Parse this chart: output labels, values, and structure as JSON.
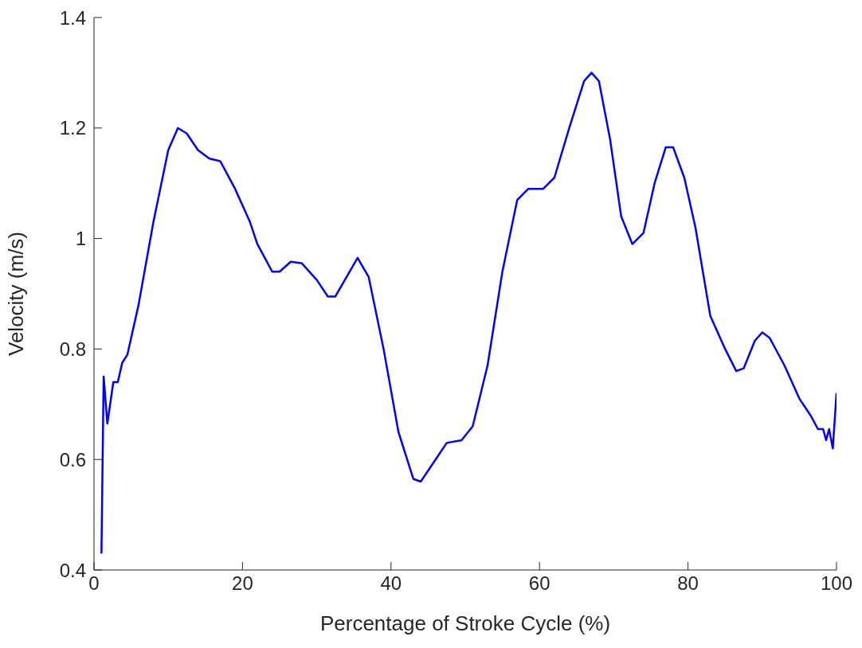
{
  "chart_data": {
    "type": "line",
    "xlabel": "Percentage of Stroke Cycle (%)",
    "ylabel": "Velocity (m/s)",
    "xlim": [
      0,
      100
    ],
    "xticks": [
      0,
      20,
      40,
      60,
      80,
      100
    ],
    "ylim": [
      0.4,
      1.4
    ],
    "yticks": [
      0.4,
      0.6,
      0.8,
      1,
      1.2,
      1.4
    ],
    "grid": false,
    "legend": false,
    "marker": "none",
    "line_style": "solid",
    "x": [
      1.0,
      1.3,
      1.8,
      2.6,
      3.2,
      3.8,
      4.5,
      6,
      8,
      10,
      11.3,
      12.5,
      14,
      15.5,
      17,
      19,
      21,
      22,
      23,
      24,
      25,
      26.5,
      28,
      30,
      31.5,
      32.5,
      34,
      35.5,
      37,
      39,
      41,
      43,
      44,
      46,
      47.5,
      49.5,
      51,
      53,
      55,
      57,
      58.5,
      60.5,
      62,
      64,
      66,
      67,
      68,
      69.5,
      71,
      72.5,
      74,
      75.5,
      77,
      78,
      79.5,
      81,
      83,
      85,
      86.5,
      87.5,
      89,
      90,
      91,
      93,
      95,
      96.5,
      97.5,
      98.2,
      98.6,
      99,
      99.5,
      100
    ],
    "series": [
      {
        "color": "#0000ff",
        "values": [
          0.43,
          0.75,
          0.665,
          0.74,
          0.74,
          0.775,
          0.79,
          0.88,
          1.03,
          1.16,
          1.2,
          1.19,
          1.16,
          1.145,
          1.14,
          1.09,
          1.03,
          0.99,
          0.965,
          0.94,
          0.94,
          0.958,
          0.955,
          0.925,
          0.895,
          0.895,
          0.93,
          0.965,
          0.93,
          0.8,
          0.65,
          0.565,
          0.56,
          0.6,
          0.63,
          0.635,
          0.66,
          0.77,
          0.94,
          1.07,
          1.09,
          1.09,
          1.11,
          1.2,
          1.285,
          1.3,
          1.285,
          1.18,
          1.04,
          0.99,
          1.01,
          1.1,
          1.165,
          1.165,
          1.11,
          1.02,
          0.86,
          0.8,
          0.76,
          0.765,
          0.815,
          0.83,
          0.82,
          0.77,
          0.71,
          0.68,
          0.655,
          0.655,
          0.635,
          0.655,
          0.62,
          0.72
        ]
      }
    ]
  }
}
